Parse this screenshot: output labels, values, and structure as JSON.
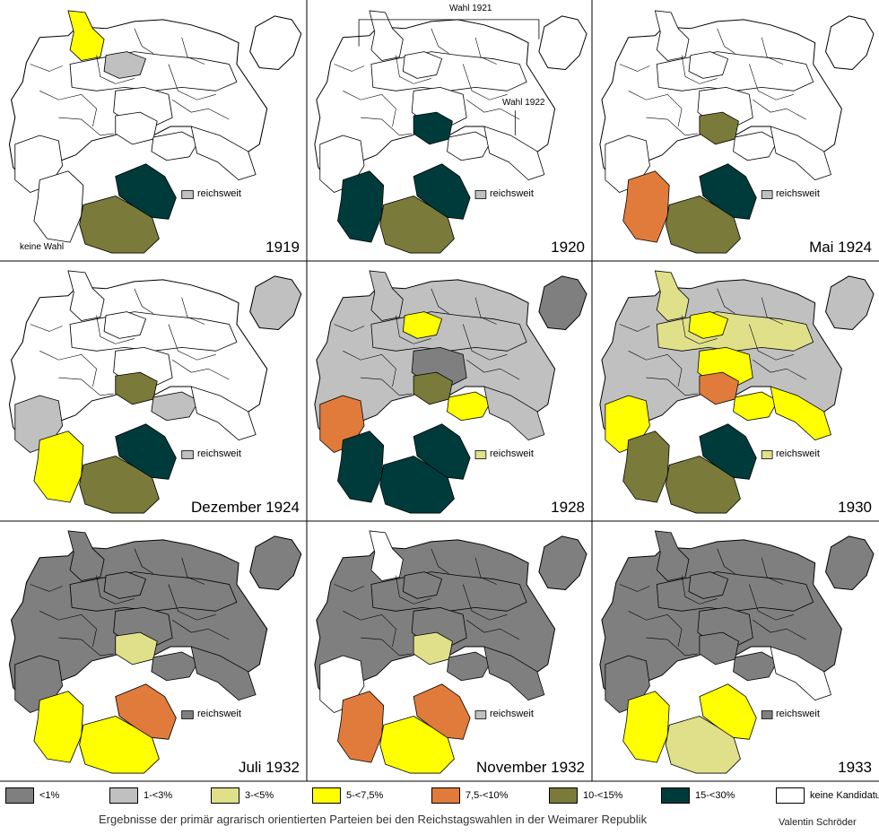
{
  "colors": {
    "lt1": "#7f7f7f",
    "p1to3": "#c0c0c0",
    "p3to5": "#e0e08a",
    "p5to75": "#ffff00",
    "p75to10": "#e07b3c",
    "p10to15": "#7a7a3a",
    "p15to30": "#003b3b",
    "none": "#ffffff"
  },
  "panels": [
    {
      "year": "1919",
      "reichsweit_label": "reichsweit",
      "reichsweit_color": "p1to3",
      "note": "keine Wahl",
      "prussia": "none",
      "east_prussia": "none",
      "fill": {
        "north": "none",
        "schleswig": "p5to75",
        "mecklenburg": "p1to3",
        "center": "none",
        "thuringia": "none",
        "west": "none",
        "southwest": "none",
        "bavaria_n": "p10to15",
        "bavaria_e": "p15to30",
        "saxony": "none",
        "silesia": "none"
      }
    },
    {
      "year": "1920",
      "reichsweit_label": "reichsweit",
      "reichsweit_color": "p1to3",
      "wahl1921": "Wahl 1921",
      "wahl1922": "Wahl 1922",
      "prussia": "none",
      "east_prussia": "none",
      "fill": {
        "north": "none",
        "schleswig": "none",
        "mecklenburg": "none",
        "center": "none",
        "thuringia": "p15to30",
        "west": "none",
        "southwest": "p15to30",
        "bavaria_n": "p10to15",
        "bavaria_e": "p15to30",
        "saxony": "none",
        "silesia": "none"
      }
    },
    {
      "year": "Mai 1924",
      "reichsweit_label": "reichsweit",
      "reichsweit_color": "p1to3",
      "prussia": "none",
      "east_prussia": "none",
      "fill": {
        "north": "none",
        "schleswig": "none",
        "mecklenburg": "none",
        "center": "none",
        "thuringia": "p10to15",
        "west": "none",
        "southwest": "p75to10",
        "bavaria_n": "p10to15",
        "bavaria_e": "p15to30",
        "saxony": "none",
        "silesia": "none"
      }
    },
    {
      "year": "Dezember 1924",
      "reichsweit_label": "reichsweit",
      "reichsweit_color": "p1to3",
      "prussia": "none",
      "east_prussia": "p1to3",
      "fill": {
        "north": "none",
        "schleswig": "none",
        "mecklenburg": "none",
        "center": "none",
        "thuringia": "p10to15",
        "west": "p1to3",
        "southwest": "p5to75",
        "bavaria_n": "p10to15",
        "bavaria_e": "p15to30",
        "saxony": "p1to3",
        "silesia": "none"
      }
    },
    {
      "year": "1928",
      "reichsweit_label": "reichsweit",
      "reichsweit_color": "p3to5",
      "prussia": "p1to3",
      "east_prussia": "lt1",
      "fill": {
        "north": "p1to3",
        "schleswig": "p1to3",
        "mecklenburg": "p5to75",
        "center": "lt1",
        "thuringia": "p10to15",
        "west": "p75to10",
        "southwest": "p15to30",
        "bavaria_n": "p15to30",
        "bavaria_e": "p15to30",
        "saxony": "p5to75",
        "silesia": "p1to3"
      }
    },
    {
      "year": "1930",
      "reichsweit_label": "reichsweit",
      "reichsweit_color": "p3to5",
      "prussia": "p1to3",
      "east_prussia": "p1to3",
      "fill": {
        "north": "p3to5",
        "schleswig": "p3to5",
        "mecklenburg": "p5to75",
        "center": "p5to75",
        "thuringia": "p75to10",
        "west": "p5to75",
        "southwest": "p10to15",
        "bavaria_n": "p10to15",
        "bavaria_e": "p15to30",
        "saxony": "p5to75",
        "silesia": "p5to75"
      }
    },
    {
      "year": "Juli 1932",
      "reichsweit_label": "reichsweit",
      "reichsweit_color": "lt1",
      "prussia": "lt1",
      "east_prussia": "lt1",
      "fill": {
        "north": "lt1",
        "schleswig": "lt1",
        "mecklenburg": "lt1",
        "center": "lt1",
        "thuringia": "p3to5",
        "west": "lt1",
        "southwest": "p5to75",
        "bavaria_n": "p5to75",
        "bavaria_e": "p75to10",
        "saxony": "lt1",
        "silesia": "lt1"
      }
    },
    {
      "year": "November 1932",
      "reichsweit_label": "reichsweit",
      "reichsweit_color": "p1to3",
      "prussia": "lt1",
      "east_prussia": "lt1",
      "fill": {
        "north": "lt1",
        "schleswig": "none",
        "mecklenburg": "lt1",
        "center": "lt1",
        "thuringia": "p3to5",
        "west": "none",
        "southwest": "p75to10",
        "bavaria_n": "p5to75",
        "bavaria_e": "p75to10",
        "saxony": "lt1",
        "silesia": "lt1"
      }
    },
    {
      "year": "1933",
      "reichsweit_label": "reichsweit",
      "reichsweit_color": "lt1",
      "prussia": "lt1",
      "east_prussia": "lt1",
      "fill": {
        "north": "lt1",
        "schleswig": "lt1",
        "mecklenburg": "lt1",
        "center": "lt1",
        "thuringia": "lt1",
        "west": "lt1",
        "southwest": "p5to75",
        "bavaria_n": "p3to5",
        "bavaria_e": "p5to75",
        "saxony": "lt1",
        "silesia": "none"
      }
    }
  ],
  "legend": [
    {
      "label": "<1%",
      "color": "lt1"
    },
    {
      "label": "1-<3%",
      "color": "p1to3"
    },
    {
      "label": "3-<5%",
      "color": "p3to5"
    },
    {
      "label": "5-<7,5%",
      "color": "p5to75"
    },
    {
      "label": "7,5-<10%",
      "color": "p75to10"
    },
    {
      "label": "10-<15%",
      "color": "p10to15"
    },
    {
      "label": "15-<30%",
      "color": "p15to30"
    },
    {
      "label": "keine Kandidatur",
      "color": "none"
    }
  ],
  "caption": "Ergebnisse der  primär agrarisch orientierten Parteien bei den Reichstagswahlen in der Weimarer Republik",
  "author": "Valentin Schröder"
}
